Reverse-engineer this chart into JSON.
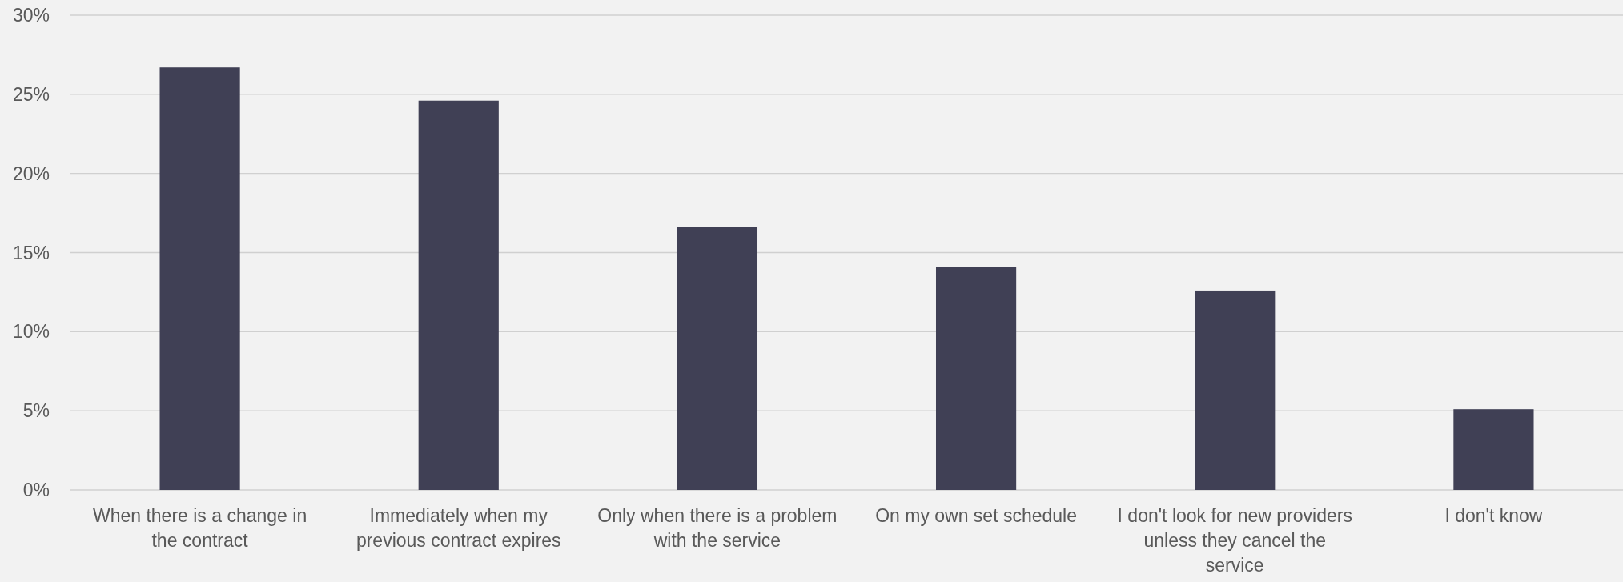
{
  "chart_data": {
    "type": "bar",
    "categories": [
      "When there is a change in the contract",
      "Immediately when my previous contract expires",
      "Only when there is a problem with the service",
      "On my own set schedule",
      "I don't look for new providers unless they cancel the service",
      "I don't know"
    ],
    "values": [
      26.7,
      24.6,
      16.6,
      14.1,
      12.6,
      5.1
    ],
    "color": "#404055",
    "ylim": [
      0,
      30
    ],
    "yticks": [
      {
        "value": 0,
        "label": "0%"
      },
      {
        "value": 5,
        "label": "5%"
      },
      {
        "value": 10,
        "label": "10%"
      },
      {
        "value": 15,
        "label": "15%"
      },
      {
        "value": 20,
        "label": "20%"
      },
      {
        "value": 25,
        "label": "25%"
      },
      {
        "value": 30,
        "label": "30%"
      }
    ],
    "grid": "y"
  }
}
